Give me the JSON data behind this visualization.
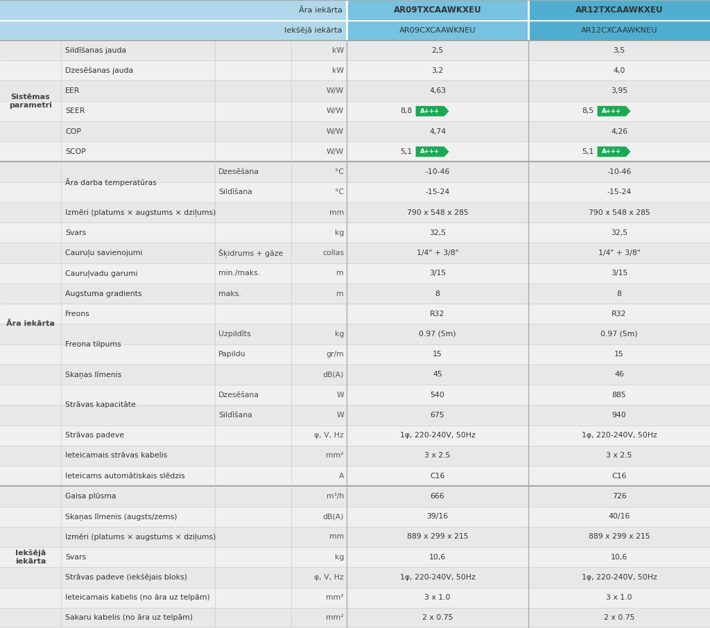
{
  "header1_bg_left": "#add8e6",
  "header1_bg_mid": "#87ceeb",
  "header1_bg_right": "#5bb8d4",
  "header2_bg_left": "#add8e6",
  "header2_bg_mid": "#87ceeb",
  "header2_bg_right": "#5bb8d4",
  "row_bg_odd": "#e8e8e8",
  "row_bg_even": "#f5f5f5",
  "section_bg": "#d8d8d8",
  "green_badge": "#1aaa55",
  "border_color": "#bbbbbb",
  "sections": [
    {
      "label": "Sistēmas\nparametri",
      "rows": [
        {
          "col1": "Sildīšanas jauda",
          "col1b": "",
          "col2": "kW",
          "col3": "2,5",
          "col4": "3,5",
          "badge3": false,
          "badge4": false
        },
        {
          "col1": "Dzesēšanas jauda",
          "col1b": "",
          "col2": "kW",
          "col3": "3,2",
          "col4": "4,0",
          "badge3": false,
          "badge4": false
        },
        {
          "col1": "EER",
          "col1b": "",
          "col2": "W/W",
          "col3": "4,63",
          "col4": "3,95",
          "badge3": false,
          "badge4": false
        },
        {
          "col1": "SEER",
          "col1b": "",
          "col2": "W/W",
          "col3": "8,8",
          "col4": "8,5",
          "badge3": true,
          "badge4": true
        },
        {
          "col1": "COP",
          "col1b": "",
          "col2": "W/W",
          "col3": "4,74",
          "col4": "4,26",
          "badge3": false,
          "badge4": false
        },
        {
          "col1": "SCOP",
          "col1b": "",
          "col2": "W/W",
          "col3": "5,1",
          "col4": "5,1",
          "badge3": true,
          "badge4": true
        }
      ]
    },
    {
      "label": "Āra iekārta",
      "rows": [
        {
          "col1": "Āra darba temperatūras",
          "col1b": "Dzesēšana",
          "col2": "°C",
          "col3": "-10-46",
          "col4": "-10-46",
          "badge3": false,
          "badge4": false
        },
        {
          "col1": "Āra darba temperatūras",
          "col1b": "Sildīšana",
          "col2": "°C",
          "col3": "-15-24",
          "col4": "-15-24",
          "badge3": false,
          "badge4": false
        },
        {
          "col1": "Izmēri (platums × augstums × dziļums)",
          "col1b": "",
          "col2": "mm",
          "col3": "790 x 548 x 285",
          "col4": "790 x 548 x 285",
          "badge3": false,
          "badge4": false
        },
        {
          "col1": "Svars",
          "col1b": "",
          "col2": "kg",
          "col3": "32,5",
          "col4": "32,5",
          "badge3": false,
          "badge4": false
        },
        {
          "col1": "Cauruļu savienojumi",
          "col1b": "Šķidrums + gāze",
          "col2": "collas",
          "col3": "1/4\" + 3/8\"",
          "col4": "1/4\" + 3/8\"",
          "badge3": false,
          "badge4": false
        },
        {
          "col1": "Cauruļvadu garumi",
          "col1b": "min./maks.",
          "col2": "m",
          "col3": "3/15",
          "col4": "3/15",
          "badge3": false,
          "badge4": false
        },
        {
          "col1": "Augstuma gradients",
          "col1b": "maks.",
          "col2": "m",
          "col3": "8",
          "col4": "8",
          "badge3": false,
          "badge4": false
        },
        {
          "col1": "Freons",
          "col1b": "",
          "col2": "",
          "col3": "R32",
          "col4": "R32",
          "badge3": false,
          "badge4": false
        },
        {
          "col1": "Freona tilpums",
          "col1b": "Uzpildīts",
          "col2": "kg",
          "col3": "0.97 (5m)",
          "col4": "0.97 (5m)",
          "badge3": false,
          "badge4": false
        },
        {
          "col1": "Freona tilpums",
          "col1b": "Papildu",
          "col2": "gr/m",
          "col3": "15",
          "col4": "15",
          "badge3": false,
          "badge4": false
        },
        {
          "col1": "Skaņas līmenis",
          "col1b": "",
          "col2": "dB(A)",
          "col3": "45",
          "col4": "46",
          "badge3": false,
          "badge4": false
        },
        {
          "col1": "Strāvas kapacitāte",
          "col1b": "Dzesēšana",
          "col2": "W",
          "col3": "540",
          "col4": "885",
          "badge3": false,
          "badge4": false
        },
        {
          "col1": "Strāvas kapacitāte",
          "col1b": "Sildīšana",
          "col2": "W",
          "col3": "675",
          "col4": "940",
          "badge3": false,
          "badge4": false
        },
        {
          "col1": "Strāvas padeve",
          "col1b": "",
          "col2": "φ, V, Hz",
          "col3": "1φ, 220-240V, 50Hz",
          "col4": "1φ, 220-240V, 50Hz",
          "badge3": false,
          "badge4": false
        },
        {
          "col1": "Ieteicamais strāvas kabelis",
          "col1b": "",
          "col2": "mm²",
          "col3": "3 x 2.5",
          "col4": "3 x 2.5",
          "badge3": false,
          "badge4": false
        },
        {
          "col1": "Ieteicams automātiskais slēdzis",
          "col1b": "",
          "col2": "A",
          "col3": "C16",
          "col4": "C16",
          "badge3": false,
          "badge4": false
        }
      ]
    },
    {
      "label": "Iekšējā\niekārta",
      "rows": [
        {
          "col1": "Gaisa plūsma",
          "col1b": "",
          "col2": "m³/h",
          "col3": "666",
          "col4": "726",
          "badge3": false,
          "badge4": false
        },
        {
          "col1": "Skaņas līmenis (augsts/zems)",
          "col1b": "",
          "col2": "dB(A)",
          "col3": "39/16",
          "col4": "40/16",
          "badge3": false,
          "badge4": false
        },
        {
          "col1": "Izmēri (platums × augstums × dziļums)",
          "col1b": "",
          "col2": "mm",
          "col3": "889 x 299 x 215",
          "col4": "889 x 299 x 215",
          "badge3": false,
          "badge4": false
        },
        {
          "col1": "Svars",
          "col1b": "",
          "col2": "kg",
          "col3": "10,6",
          "col4": "10,6",
          "badge3": false,
          "badge4": false
        },
        {
          "col1": "Strāvas padeve (iekšējais bloks)",
          "col1b": "",
          "col2": "φ, V, Hz",
          "col3": "1φ, 220-240V, 50Hz",
          "col4": "1φ, 220-240V, 50Hz",
          "badge3": false,
          "badge4": false
        },
        {
          "col1": "Ieteicamais kabelis (no āra uz telpām)",
          "col1b": "",
          "col2": "mm²",
          "col3": "3 x 1.0",
          "col4": "3 x 1.0",
          "badge3": false,
          "badge4": false
        },
        {
          "col1": "Sakaru kabelis (no āra uz telpām)",
          "col1b": "",
          "col2": "mm²",
          "col3": "2 x 0.75",
          "col4": "2 x 0.75",
          "badge3": false,
          "badge4": false
        }
      ]
    }
  ]
}
